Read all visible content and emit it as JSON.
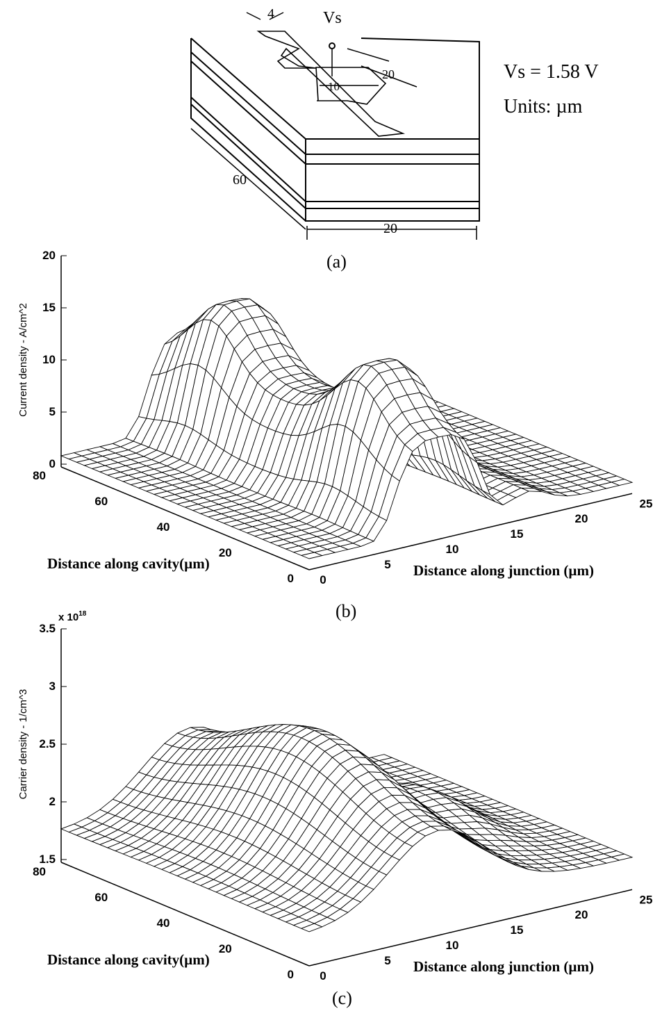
{
  "panel_a": {
    "dims": [
      "4",
      "10",
      "20",
      "60",
      "20"
    ],
    "terminal": "Vs",
    "voltage": "Vs = 1.58 V",
    "units": "Units: µm",
    "caption": "(a)"
  },
  "panel_b": {
    "z_label": "Current density - A/cm^2",
    "z_ticks": [
      0,
      5,
      10,
      15,
      20
    ],
    "cavity_ticks": [
      0,
      20,
      40,
      60,
      80
    ],
    "cavity_label": "Distance along cavity(µm)",
    "junction_ticks": [
      0,
      5,
      10,
      15,
      20,
      25
    ],
    "junction_label": "Distance along junction (µm)",
    "caption": "(b)"
  },
  "panel_c": {
    "multiplier": {
      "base": "x 10",
      "exponent": "18"
    },
    "z_label": "Carrier density - 1/cm^3",
    "z_ticks": [
      1.5,
      2,
      2.5,
      3,
      3.5
    ],
    "cavity_ticks": [
      0,
      20,
      40,
      60,
      80
    ],
    "cavity_label": "Distance along cavity(µm)",
    "junction_ticks": [
      0,
      5,
      10,
      15,
      20,
      25
    ],
    "junction_label": "Distance along junction (µm)",
    "caption": "(c)"
  }
}
